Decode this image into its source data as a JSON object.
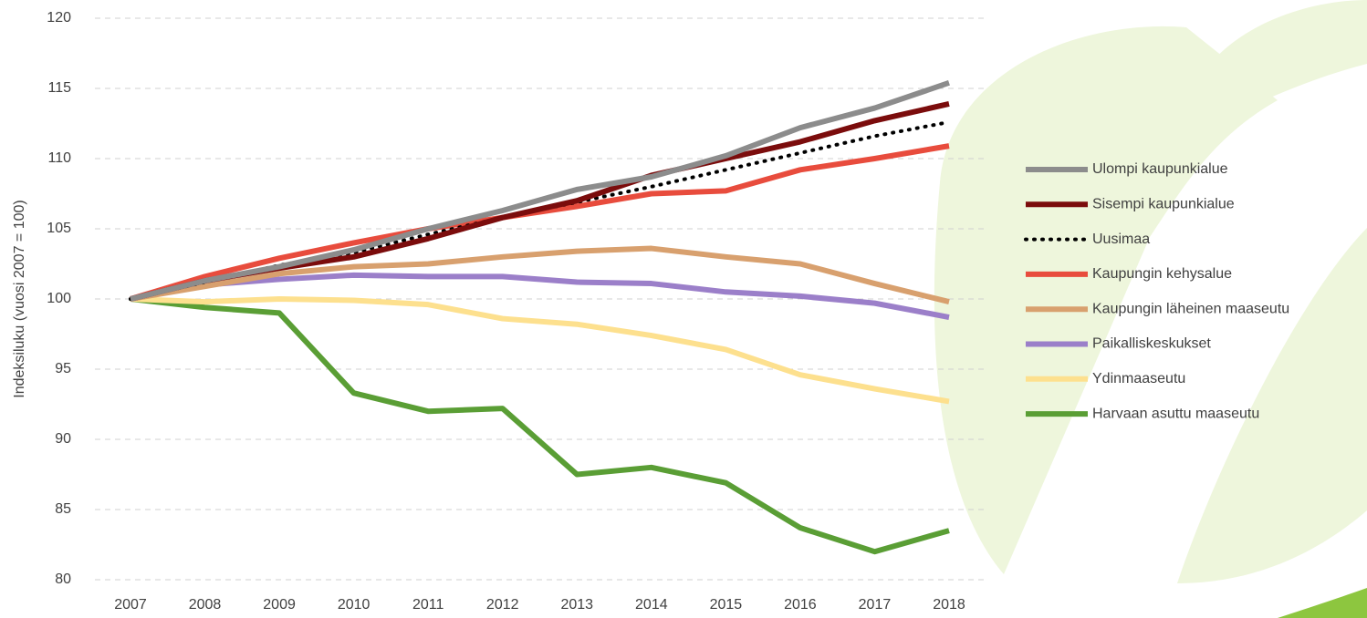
{
  "chart_data": {
    "type": "line",
    "y_label": "Indeksiluku (vuosi 2007 = 100)",
    "categories": [
      "2007",
      "2008",
      "2009",
      "2010",
      "2011",
      "2012",
      "2013",
      "2014",
      "2015",
      "2016",
      "2017",
      "2018"
    ],
    "ylim": [
      80,
      120
    ],
    "yticks": [
      80,
      85,
      90,
      95,
      100,
      105,
      110,
      115,
      120
    ],
    "grid": true,
    "legend": "right",
    "series": [
      {
        "name": "Ulompi kaupunkialue",
        "color": "#8c8c8c",
        "values": [
          100,
          101.3,
          102.3,
          103.5,
          105,
          106.3,
          107.8,
          108.7,
          110.2,
          112.2,
          113.6,
          115.4
        ]
      },
      {
        "name": "Sisempi kaupunkialue",
        "color": "#7b0c0c",
        "values": [
          100,
          101.3,
          102.2,
          103.0,
          104.3,
          105.8,
          107.0,
          108.8,
          110.0,
          111.2,
          112.7,
          113.9
        ]
      },
      {
        "name": "Uusimaa",
        "color": "#000000",
        "dash": "dotted",
        "values": [
          100,
          101.2,
          102.4,
          103.3,
          104.6,
          105.8,
          106.9,
          108.0,
          109.2,
          110.4,
          111.6,
          112.6
        ]
      },
      {
        "name": "Kaupungin kehysalue",
        "color": "#e84c3d",
        "values": [
          100,
          101.6,
          102.9,
          104.0,
          105.0,
          105.8,
          106.6,
          107.5,
          107.7,
          109.2,
          110.0,
          110.9
        ]
      },
      {
        "name": "Kaupungin läheinen maaseutu",
        "color": "#d8a06e",
        "values": [
          100,
          100.9,
          101.8,
          102.3,
          102.5,
          103.0,
          103.4,
          103.6,
          103.0,
          102.5,
          101.1,
          99.8
        ]
      },
      {
        "name": "Paikalliskeskukset",
        "color": "#9b7fc9",
        "values": [
          100,
          101.0,
          101.4,
          101.7,
          101.6,
          101.6,
          101.2,
          101.1,
          100.5,
          100.2,
          99.7,
          98.7
        ]
      },
      {
        "name": "Ydinmaaseutu",
        "color": "#fde08e",
        "values": [
          100,
          99.8,
          100.0,
          99.9,
          99.6,
          98.6,
          98.2,
          97.4,
          96.4,
          94.6,
          93.6,
          92.7
        ]
      },
      {
        "name": "Harvaan asuttu maaseutu",
        "color": "#5a9e35",
        "values": [
          100,
          99.4,
          99.0,
          93.3,
          92.0,
          92.2,
          87.5,
          88.0,
          86.9,
          83.7,
          82.0,
          83.5
        ]
      }
    ]
  }
}
